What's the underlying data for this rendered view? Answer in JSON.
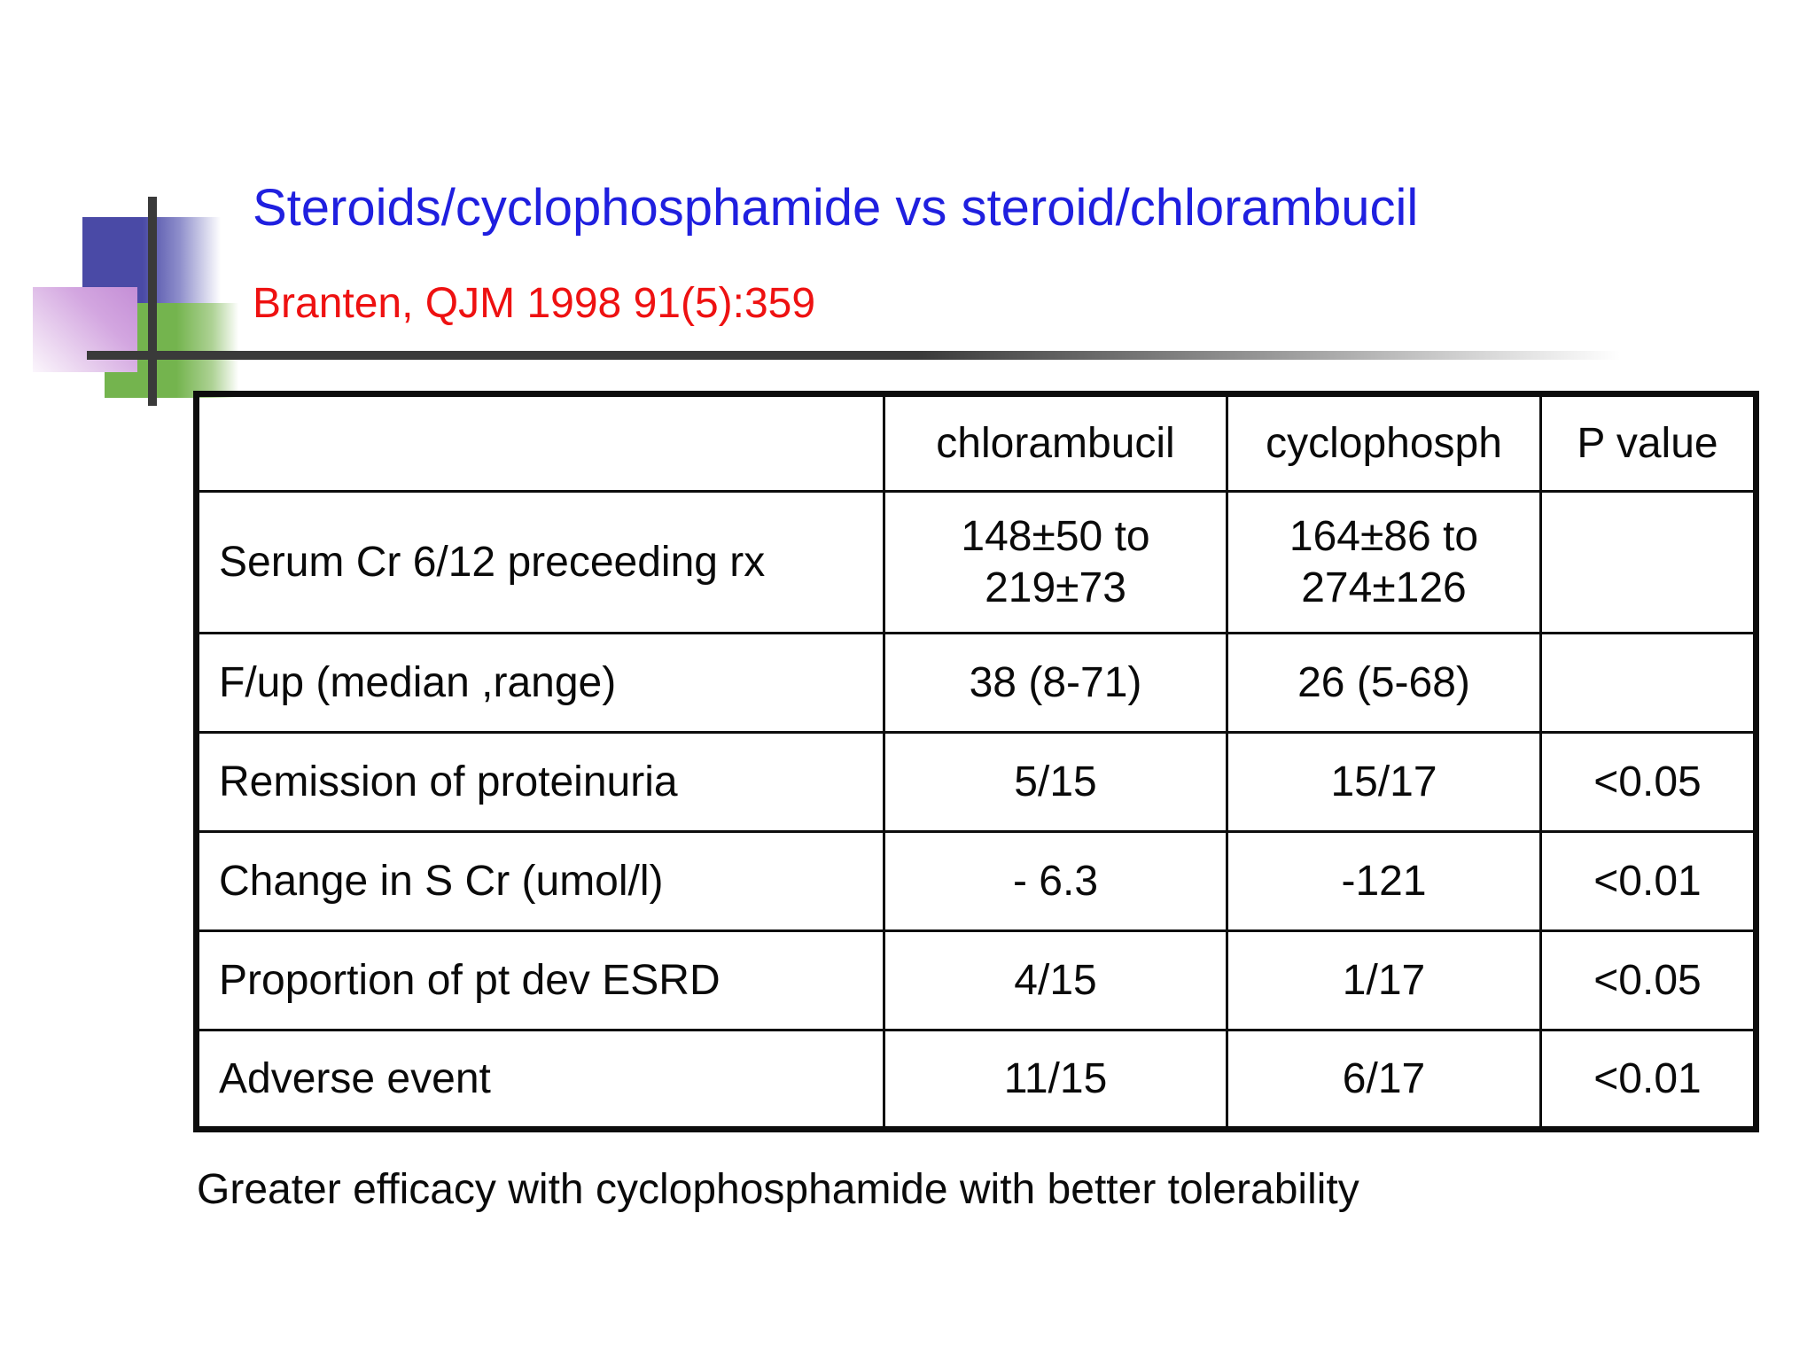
{
  "slide": {
    "title": "Steroids/cyclophosphamide vs steroid/chlorambucil",
    "citation": "Branten, QJM 1998 91(5):359",
    "conclusion": "Greater efficacy with cyclophosphamide with better tolerability",
    "colors": {
      "title_blue": "#1f1fdf",
      "citation_red": "#ee1111",
      "body_text": "#0a0a0a",
      "decoration_blue": "#4a4aa6",
      "decoration_green": "#74b44e",
      "decoration_purple": "#c48ed6",
      "decoration_line_gray": "#3a3a3a"
    }
  },
  "table": {
    "headers": [
      "",
      "chlorambucil",
      "cyclophosph",
      "P value"
    ],
    "rows": [
      {
        "label": "Serum Cr 6/12 preceeding rx",
        "chlorambucil": "148±50 to\n219±73",
        "cyclophosph": "164±86 to\n274±126",
        "p_value": ""
      },
      {
        "label": "F/up (median ,range)",
        "chlorambucil": "38 (8-71)",
        "cyclophosph": "26 (5-68)",
        "p_value": ""
      },
      {
        "label": "Remission of proteinuria",
        "chlorambucil": "5/15",
        "cyclophosph": "15/17",
        "p_value": "<0.05"
      },
      {
        "label": "Change in S Cr (umol/l)",
        "chlorambucil": "- 6.3",
        "cyclophosph": "-121",
        "p_value": "<0.01"
      },
      {
        "label": "Proportion of pt dev ESRD",
        "chlorambucil": "4/15",
        "cyclophosph": "1/17",
        "p_value": "<0.05"
      },
      {
        "label": "Adverse event",
        "chlorambucil": "11/15",
        "cyclophosph": "6/17",
        "p_value": "<0.01"
      }
    ]
  }
}
